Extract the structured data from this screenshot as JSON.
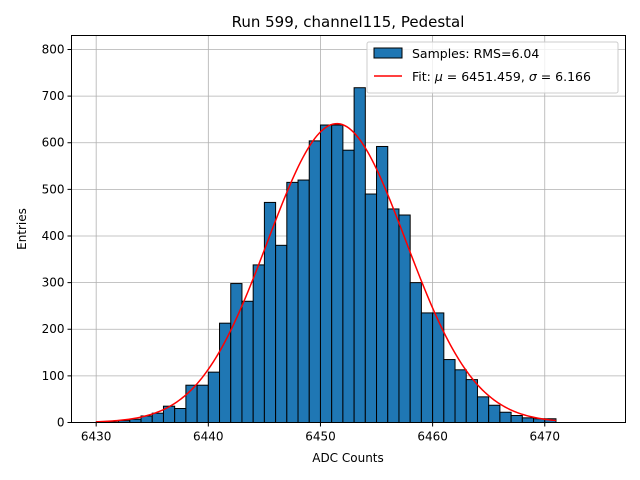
{
  "chart_data": {
    "type": "bar",
    "title": "Run 599, channel115, Pedestal",
    "xlabel": "ADC Counts",
    "ylabel": "Entries",
    "xlim": [
      6427.8,
      6477.2
    ],
    "ylim": [
      0,
      830
    ],
    "xticks": [
      6430,
      6440,
      6450,
      6460,
      6470
    ],
    "yticks": [
      0,
      100,
      200,
      300,
      400,
      500,
      600,
      700,
      800
    ],
    "grid": true,
    "legend_position": "top-right",
    "bar_color": "#1f77b4",
    "fit_color": "#ff0000",
    "bin_width": 1,
    "bins_start": [
      6430,
      6431,
      6432,
      6433,
      6434,
      6435,
      6436,
      6437,
      6438,
      6439,
      6440,
      6441,
      6442,
      6443,
      6444,
      6445,
      6446,
      6447,
      6448,
      6449,
      6450,
      6451,
      6452,
      6453,
      6454,
      6455,
      6456,
      6457,
      6458,
      6459,
      6460,
      6461,
      6462,
      6463,
      6464,
      6465,
      6466,
      6467,
      6468,
      6469,
      6470
    ],
    "counts": [
      1,
      1,
      4,
      7,
      14,
      20,
      35,
      30,
      80,
      80,
      108,
      213,
      298,
      260,
      338,
      472,
      380,
      515,
      520,
      604,
      638,
      638,
      584,
      718,
      490,
      592,
      458,
      445,
      300,
      235,
      235,
      135,
      113,
      92,
      55,
      37,
      22,
      15,
      10,
      8,
      8
    ],
    "series": [
      {
        "name": "Samples: RMS=6.04",
        "kind": "histogram"
      },
      {
        "name": "Fit: μ = 6451.459, σ = 6.166",
        "kind": "gaussian_fit",
        "mu": 6451.459,
        "sigma": 6.166,
        "amplitude": 641,
        "x_range": [
          6430,
          6471
        ]
      }
    ]
  }
}
